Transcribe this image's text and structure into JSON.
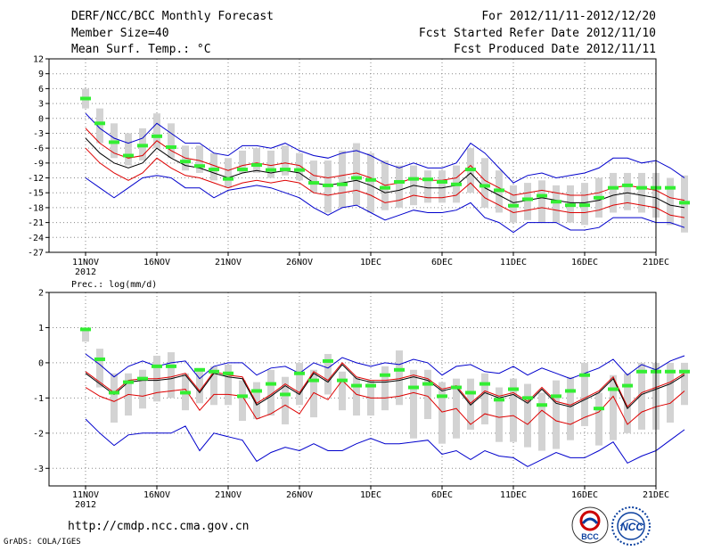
{
  "header": {
    "title": "DERF/NCC/BCC Monthly Forecast",
    "member": "Member Size=40",
    "variable": "Mean Surf. Temp.: °C",
    "period": "For 2012/11/11-2012/12/20",
    "started": "Fcst Started Refer Date 2012/11/10",
    "produced": "Fcst Produced Date 2012/11/11"
  },
  "footer": {
    "url": "http://cmdp.ncc.cma.gov.cn",
    "credit": "GrADS: COLA/IGES",
    "logo1": "BCC",
    "logo2": "NCC"
  },
  "colors": {
    "box": "#d3d3d3",
    "green": "#33ee33",
    "mean": "#000000",
    "spread": "#dd0000",
    "range": "#0000cc",
    "grid": "#888888"
  },
  "chart_data": [
    {
      "type": "line",
      "title": "Mean Surf. Temp.: °C",
      "x_ticks": [
        "11NOV",
        "16NOV",
        "21NOV",
        "26NOV",
        "1DEC",
        "6DEC",
        "11DEC",
        "16DEC",
        "21DEC"
      ],
      "year_label": "2012",
      "ylim": [
        -27,
        12
      ],
      "y_ticks": [
        12,
        9,
        6,
        3,
        0,
        -3,
        -6,
        -9,
        -12,
        -15,
        -18,
        -21,
        -24,
        -27
      ],
      "grid": true,
      "series": [
        {
          "name": "ensemble mean",
          "values": [
            -4,
            -7,
            -9,
            -10,
            -9,
            -6,
            -8,
            -9.5,
            -10,
            -11,
            -12,
            -11,
            -10.5,
            -11,
            -10.5,
            -11,
            -13,
            -13.5,
            -13,
            -12.5,
            -13.5,
            -15,
            -14.5,
            -13.5,
            -14,
            -14,
            -13.5,
            -11,
            -14,
            -15.5,
            -17,
            -16.5,
            -16,
            -16.5,
            -17,
            -17,
            -16.5,
            -15.5,
            -15,
            -15.5,
            -16,
            -17.5,
            -18
          ]
        },
        {
          "name": "upper spread",
          "values": [
            -2,
            -5,
            -7,
            -8,
            -7.5,
            -4.5,
            -6.5,
            -8,
            -8.5,
            -9.5,
            -10.5,
            -9.5,
            -9,
            -9.5,
            -9,
            -9.5,
            -11.5,
            -12,
            -11.5,
            -11,
            -12,
            -13.5,
            -13,
            -12,
            -12.5,
            -12.5,
            -12,
            -9.5,
            -12.5,
            -14,
            -15.5,
            -15,
            -14.5,
            -15,
            -15.5,
            -15.5,
            -15,
            -14,
            -13.5,
            -14,
            -14.5,
            -16,
            -16.5
          ]
        },
        {
          "name": "lower spread",
          "values": [
            -6,
            -9,
            -11,
            -12.5,
            -11,
            -8,
            -10,
            -11.5,
            -12,
            -13,
            -14,
            -13,
            -12.5,
            -13,
            -12.5,
            -13,
            -15,
            -15.5,
            -15,
            -14.5,
            -15.5,
            -17,
            -16.5,
            -15.5,
            -16,
            -16,
            -15.5,
            -13,
            -16,
            -17.5,
            -19,
            -18.5,
            -18,
            -18.5,
            -19,
            -19,
            -18.5,
            -17.5,
            -17,
            -17.5,
            -18,
            -19.5,
            -20
          ]
        },
        {
          "name": "max",
          "values": [
            1,
            -2,
            -4,
            -5,
            -4,
            -1,
            -3,
            -5,
            -5,
            -7,
            -7.5,
            -5.5,
            -5.5,
            -6,
            -5,
            -6.5,
            -7.5,
            -8,
            -7,
            -6.5,
            -7.5,
            -9,
            -10,
            -9,
            -10,
            -10,
            -9,
            -5,
            -7,
            -10,
            -13,
            -11.5,
            -11,
            -12,
            -11.5,
            -11,
            -10,
            -8,
            -8,
            -9,
            -8.5,
            -10,
            -12
          ]
        },
        {
          "name": "min",
          "values": [
            -12,
            -14,
            -16,
            -14,
            -12,
            -11.5,
            -12,
            -14,
            -14,
            -16,
            -14.5,
            -14,
            -13.5,
            -14,
            -15,
            -16,
            -18,
            -19.5,
            -18,
            -17.5,
            -19,
            -20.5,
            -19.5,
            -18.5,
            -19,
            -19,
            -18.5,
            -17,
            -20,
            -21,
            -23,
            -21,
            -21,
            -21,
            -22.5,
            -22.5,
            -22,
            -20,
            -20,
            -20,
            -21,
            -21,
            -22
          ]
        },
        {
          "name": "forecast marker",
          "values": [
            4,
            -1,
            -4.8,
            -7.5,
            -5.5,
            -3.6,
            -5.8,
            -8.7,
            -9.6,
            -10.3,
            -12.2,
            -10.3,
            -9.4,
            -10.4,
            -10.3,
            -10.4,
            -13,
            -13.5,
            -13.3,
            -12,
            -12.4,
            -14,
            -12.8,
            -12.2,
            -12.3,
            -12.8,
            -13.3,
            -10.3,
            -13.6,
            -14.5,
            -17.6,
            -16.3,
            -15.6,
            -16.8,
            -17.5,
            -17.5,
            -16,
            -14,
            -13.5,
            -14,
            -14,
            -14,
            -17
          ]
        },
        {
          "name": "box top",
          "values": [
            6,
            2,
            -1,
            -3,
            -2,
            1,
            -1,
            -5.5,
            -5.5,
            -7,
            -8,
            -6.5,
            -6,
            -6.5,
            -5.5,
            -7,
            -8.5,
            -8.5,
            -6.5,
            -5,
            -7,
            -8.5,
            -9.5,
            -9.5,
            -10.5,
            -10.5,
            -9.5,
            -6,
            -8,
            -10.5,
            -13.5,
            -13,
            -12.5,
            -13.5,
            -13.5,
            -13,
            -12,
            -11,
            -11,
            -11,
            -11,
            -12,
            -11.5
          ]
        },
        {
          "name": "box bottom",
          "values": [
            2,
            -5,
            -8,
            -9.5,
            -8.5,
            -6,
            -8,
            -10.5,
            -11,
            -12.5,
            -14,
            -11,
            -11,
            -12,
            -11.5,
            -12.5,
            -15,
            -19,
            -18,
            -17.5,
            -19,
            -18.5,
            -18,
            -17.5,
            -17,
            -17,
            -17,
            -15,
            -18,
            -19,
            -21,
            -20.5,
            -21,
            -21,
            -21,
            -21.5,
            -20,
            -19,
            -18.5,
            -19,
            -20,
            -21.5,
            -23
          ]
        }
      ]
    },
    {
      "type": "line",
      "title": "Prec.: log(mm/d)",
      "x_ticks": [
        "11NOV",
        "16NOV",
        "21NOV",
        "26NOV",
        "1DEC",
        "6DEC",
        "11DEC",
        "16DEC",
        "21DEC"
      ],
      "year_label": "2012",
      "ylim": [
        -3.5,
        2
      ],
      "y_ticks": [
        2,
        1,
        0,
        -1,
        -2,
        -3
      ],
      "grid": true,
      "series": [
        {
          "name": "ensemble mean",
          "values": [
            -0.3,
            -0.6,
            -0.9,
            -0.55,
            -0.5,
            -0.5,
            -0.45,
            -0.35,
            -0.85,
            -0.3,
            -0.4,
            -0.45,
            -1.2,
            -0.95,
            -0.65,
            -0.9,
            -0.3,
            -0.55,
            -0.05,
            -0.45,
            -0.55,
            -0.55,
            -0.5,
            -0.4,
            -0.5,
            -0.8,
            -0.7,
            -1.2,
            -0.85,
            -1.0,
            -0.9,
            -1.15,
            -0.75,
            -1.15,
            -1.25,
            -1.05,
            -0.85,
            -0.45,
            -1.3,
            -0.9,
            -0.75,
            -0.6,
            -0.35
          ]
        },
        {
          "name": "upper spread",
          "values": [
            -0.25,
            -0.55,
            -0.85,
            -0.5,
            -0.45,
            -0.45,
            -0.4,
            -0.3,
            -0.8,
            -0.25,
            -0.35,
            -0.4,
            -1.15,
            -0.9,
            -0.6,
            -0.85,
            -0.25,
            -0.5,
            0.0,
            -0.4,
            -0.5,
            -0.5,
            -0.45,
            -0.35,
            -0.45,
            -0.75,
            -0.65,
            -1.15,
            -0.8,
            -0.95,
            -0.85,
            -1.1,
            -0.7,
            -1.1,
            -1.2,
            -1.0,
            -0.8,
            -0.4,
            -1.25,
            -0.85,
            -0.7,
            -0.55,
            -0.3
          ]
        },
        {
          "name": "lower spread",
          "values": [
            -0.7,
            -0.95,
            -1.1,
            -0.9,
            -0.95,
            -0.85,
            -0.8,
            -0.75,
            -1.35,
            -0.9,
            -0.9,
            -0.95,
            -1.6,
            -1.45,
            -1.2,
            -1.45,
            -0.85,
            -1.05,
            -0.5,
            -0.9,
            -1.0,
            -1.0,
            -0.95,
            -0.85,
            -0.95,
            -1.4,
            -1.3,
            -1.75,
            -1.45,
            -1.55,
            -1.5,
            -1.75,
            -1.35,
            -1.65,
            -1.75,
            -1.55,
            -1.4,
            -0.95,
            -1.75,
            -1.4,
            -1.25,
            -1.15,
            -0.8
          ]
        },
        {
          "name": "max",
          "values": [
            0.25,
            -0.05,
            -0.4,
            -0.1,
            0.05,
            -0.1,
            0.0,
            0.05,
            -0.45,
            -0.1,
            0.0,
            0.0,
            -0.35,
            -0.15,
            -0.1,
            -0.3,
            0.0,
            -0.15,
            0.15,
            0.0,
            -0.1,
            0.0,
            -0.05,
            0.1,
            0.0,
            -0.35,
            -0.1,
            -0.05,
            -0.25,
            -0.3,
            -0.1,
            -0.35,
            -0.15,
            -0.3,
            -0.45,
            -0.3,
            -0.15,
            0.1,
            -0.35,
            -0.05,
            -0.2,
            0.05,
            0.2
          ]
        },
        {
          "name": "min",
          "values": [
            -1.6,
            -2.0,
            -2.35,
            -2.05,
            -2.0,
            -2.0,
            -2.0,
            -1.8,
            -2.5,
            -2.0,
            -2.1,
            -2.2,
            -2.8,
            -2.55,
            -2.4,
            -2.5,
            -2.3,
            -2.5,
            -2.5,
            -2.3,
            -2.15,
            -2.3,
            -2.3,
            -2.25,
            -2.2,
            -2.6,
            -2.5,
            -2.75,
            -2.5,
            -2.65,
            -2.7,
            -2.95,
            -2.75,
            -2.55,
            -2.7,
            -2.7,
            -2.5,
            -2.25,
            -2.85,
            -2.65,
            -2.5,
            -2.2,
            -1.9
          ]
        },
        {
          "name": "forecast marker",
          "values": [
            0.95,
            0.1,
            -0.85,
            -0.55,
            -0.45,
            -0.1,
            -0.1,
            -0.85,
            -0.2,
            -0.25,
            -0.3,
            -0.95,
            -0.8,
            -0.6,
            -0.9,
            -0.3,
            -0.5,
            0.05,
            -0.5,
            -0.65,
            -0.65,
            -0.35,
            -0.2,
            -0.7,
            -0.6,
            -0.95,
            -0.7,
            -0.85,
            -0.6,
            -1.05,
            -0.75,
            -1.0,
            -1.2,
            -0.95,
            -0.8,
            -0.35,
            -1.3,
            -0.75,
            -0.65,
            -0.25,
            -0.25,
            -0.25,
            -0.25
          ]
        },
        {
          "name": "box top",
          "values": [
            0.95,
            0.4,
            -0.3,
            -0.3,
            -0.2,
            0.2,
            0.3,
            -0.3,
            -0.15,
            -0.1,
            -0.05,
            -0.5,
            -0.55,
            -0.2,
            -0.4,
            0.0,
            -0.2,
            0.25,
            -0.25,
            -0.4,
            -0.5,
            -0.1,
            0.35,
            -0.2,
            -0.2,
            -0.55,
            -0.45,
            -0.45,
            -0.3,
            -0.7,
            -0.45,
            -0.6,
            -0.85,
            -0.5,
            -0.4,
            0.0,
            -0.85,
            -0.35,
            -0.3,
            0.0,
            0.0,
            0.0,
            0.0
          ]
        },
        {
          "name": "box bottom",
          "values": [
            0.6,
            -0.7,
            -1.7,
            -1.5,
            -1.3,
            -1.1,
            -1.0,
            -1.35,
            -1.15,
            -1.2,
            -1.2,
            -1.65,
            -1.6,
            -1.5,
            -1.75,
            -1.2,
            -1.55,
            -0.9,
            -1.35,
            -1.5,
            -1.5,
            -1.35,
            -1.2,
            -2.15,
            -1.6,
            -2.3,
            -2.15,
            -1.9,
            -1.75,
            -2.25,
            -2.25,
            -2.4,
            -2.5,
            -2.45,
            -2.2,
            -1.8,
            -2.35,
            -2.2,
            -2.0,
            -1.9,
            -1.9,
            -1.7,
            -1.2
          ]
        }
      ]
    }
  ]
}
